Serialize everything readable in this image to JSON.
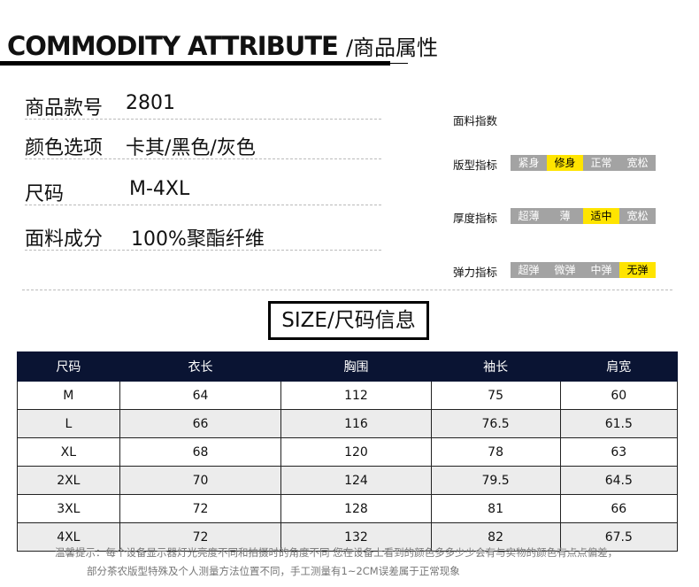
{
  "header": {
    "title": "COMMODITY ATTRIBUTE",
    "title_cn": "/商品属性"
  },
  "info": [
    {
      "label": "商品款号",
      "value": "2801"
    },
    {
      "label": "颜色选项",
      "value": "卡其/黑色/灰色"
    },
    {
      "label": "尺码",
      "value": "M-4XL"
    },
    {
      "label": "面料成分",
      "value": "100%聚酯纤维"
    }
  ],
  "fabric": {
    "title": "面料指数",
    "indices": [
      {
        "label": "版型指标",
        "options": [
          "紧身",
          "修身",
          "正常",
          "宽松"
        ],
        "selected": 1
      },
      {
        "label": "厚度指标",
        "options": [
          "超薄",
          "薄",
          "适中",
          "宽松"
        ],
        "selected": 2
      },
      {
        "label": "弹力指标",
        "options": [
          "超弹",
          "微弹",
          "中弹",
          "无弹"
        ],
        "selected": 3
      }
    ],
    "colors": {
      "active": "#ffe400",
      "inactive": "#a3a3a3"
    }
  },
  "size_title": "SIZE/尺码信息",
  "table": {
    "headers": [
      "尺码",
      "衣长",
      "胸围",
      "袖长",
      "肩宽"
    ],
    "rows": [
      [
        "M",
        "64",
        "112",
        "75",
        "60"
      ],
      [
        "L",
        "66",
        "116",
        "76.5",
        "61.5"
      ],
      [
        "XL",
        "68",
        "120",
        "78",
        "63"
      ],
      [
        "2XL",
        "70",
        "124",
        "79.5",
        "64.5"
      ],
      [
        "3XL",
        "72",
        "128",
        "81",
        "66"
      ],
      [
        "4XL",
        "72",
        "132",
        "82",
        "67.5"
      ]
    ]
  },
  "note": {
    "line1": "温馨提示：每个设备显示器灯光亮度不同和拍摄时的角度不同 您在设备上看到的颜色多多少少会有与实物的颜色有点点偏差，",
    "line2": "部分茶农版型特殊及个人测量方法位置不同，手工测量有1~2CM误差属于正常现象"
  }
}
